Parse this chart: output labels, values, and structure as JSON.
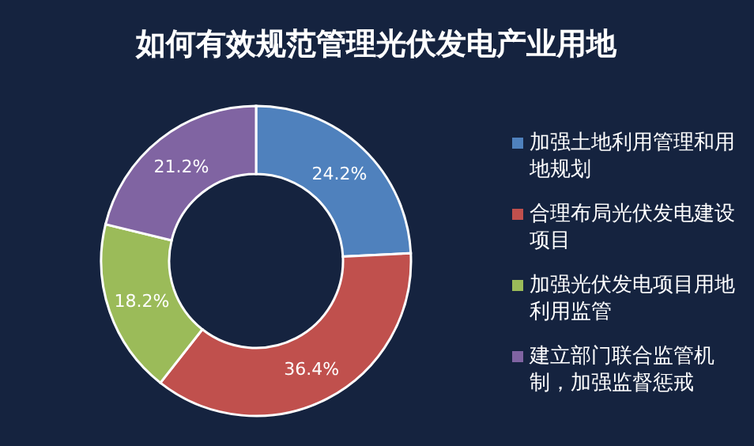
{
  "chart_data": {
    "type": "donut",
    "title": "如何有效规范管理光伏发电产业用地",
    "categories": [
      "加强土地利用管理和用地规划",
      "合理布局光伏发电建设项目",
      "加强光伏发电项目用地利用监管",
      "建立部门联合监管机制，加强监督惩戒"
    ],
    "values": [
      24.2,
      36.4,
      18.2,
      21.2
    ],
    "colors": [
      "#4f81bd",
      "#c0504d",
      "#9bbb59",
      "#8064a2"
    ],
    "value_labels": [
      "24.2%",
      "36.4%",
      "18.2%",
      "21.2%"
    ],
    "legend": "right"
  }
}
